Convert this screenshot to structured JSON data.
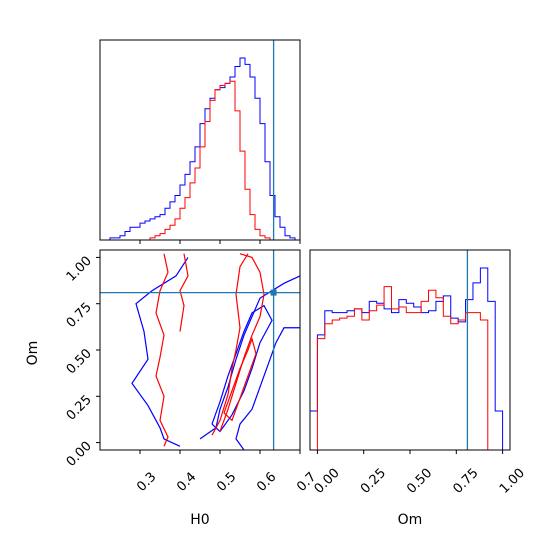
{
  "chart_data": [
    {
      "type": "histogram",
      "panel": "H0 marginal",
      "x_param": "H0",
      "xlim": [
        0.2,
        0.7
      ],
      "y_ticks_shown": false,
      "bins": [
        0.2,
        0.2125,
        0.225,
        0.2375,
        0.25,
        0.2625,
        0.275,
        0.2875,
        0.3,
        0.3125,
        0.325,
        0.3375,
        0.35,
        0.3625,
        0.375,
        0.3875,
        0.4,
        0.4125,
        0.425,
        0.4375,
        0.45,
        0.4625,
        0.475,
        0.4875,
        0.5,
        0.5125,
        0.525,
        0.5375,
        0.55,
        0.5625,
        0.575,
        0.5875,
        0.6,
        0.6125,
        0.625,
        0.6375,
        0.65,
        0.6625,
        0.675,
        0.6875,
        0.7
      ],
      "series": [
        {
          "color": "#0000ff",
          "counts": [
            0,
            0,
            1,
            1,
            2,
            4,
            6,
            6,
            8,
            9,
            10,
            11,
            12,
            15,
            18,
            21,
            26,
            31,
            37,
            44,
            55,
            62,
            67,
            71,
            72,
            74,
            77,
            82,
            86,
            83,
            77,
            67,
            55,
            37,
            21,
            11,
            6,
            2,
            1,
            0
          ]
        },
        {
          "color": "#ff0000",
          "counts": [
            0,
            0,
            0,
            0,
            0,
            0,
            0,
            0,
            0,
            0,
            1,
            2,
            3,
            5,
            7,
            10,
            15,
            20,
            27,
            34,
            44,
            56,
            66,
            71,
            73,
            74,
            75,
            61,
            42,
            24,
            12,
            5,
            2,
            1,
            0,
            0,
            0,
            0,
            0,
            0
          ]
        }
      ],
      "truth_line": {
        "x": 0.634,
        "color": "#1f77b4"
      }
    },
    {
      "type": "contour",
      "panel": "H0 vs Om",
      "x_param": "H0",
      "y_param": "Om",
      "xlim": [
        0.2,
        0.7
      ],
      "ylim": [
        -0.04,
        1.04
      ],
      "x_ticks": [
        "0.3",
        "0.4",
        "0.5",
        "0.6",
        "0.7"
      ],
      "y_ticks": [
        "0.00",
        "0.25",
        "0.50",
        "0.75",
        "1.00"
      ],
      "xlabel": "H0",
      "ylabel": "Om",
      "series": [
        {
          "color": "#0000ff",
          "contours": [
            [
              [
                0.42,
                1.0
              ],
              [
                0.39,
                0.9
              ],
              [
                0.33,
                0.82
              ],
              [
                0.29,
                0.75
              ],
              [
                0.31,
                0.6
              ],
              [
                0.32,
                0.45
              ],
              [
                0.28,
                0.32
              ],
              [
                0.32,
                0.2
              ],
              [
                0.35,
                0.08
              ],
              [
                0.36,
                0.02
              ],
              [
                0.4,
                -0.02
              ]
            ],
            [
              [
                0.45,
                0.02
              ],
              [
                0.49,
                0.08
              ],
              [
                0.5,
                0.18
              ],
              [
                0.52,
                0.3
              ],
              [
                0.54,
                0.45
              ],
              [
                0.56,
                0.58
              ],
              [
                0.58,
                0.68
              ],
              [
                0.6,
                0.78
              ],
              [
                0.66,
                0.86
              ],
              [
                0.7,
                0.9
              ]
            ],
            [
              [
                0.7,
                0.62
              ],
              [
                0.66,
                0.62
              ],
              [
                0.64,
                0.54
              ],
              [
                0.62,
                0.42
              ],
              [
                0.6,
                0.3
              ],
              [
                0.58,
                0.18
              ],
              [
                0.55,
                0.1
              ],
              [
                0.54,
                0.02
              ],
              [
                0.56,
                -0.04
              ]
            ],
            [
              [
                0.48,
                0.1
              ],
              [
                0.5,
                0.22
              ],
              [
                0.52,
                0.36
              ],
              [
                0.54,
                0.48
              ],
              [
                0.56,
                0.6
              ],
              [
                0.58,
                0.7
              ],
              [
                0.61,
                0.74
              ],
              [
                0.63,
                0.66
              ],
              [
                0.6,
                0.54
              ],
              [
                0.58,
                0.4
              ],
              [
                0.56,
                0.28
              ],
              [
                0.53,
                0.15
              ],
              [
                0.5,
                0.06
              ],
              [
                0.48,
                0.1
              ]
            ]
          ]
        },
        {
          "color": "#ff0000",
          "contours": [
            [
              [
                0.36,
                1.02
              ],
              [
                0.37,
                0.92
              ],
              [
                0.35,
                0.82
              ],
              [
                0.34,
                0.7
              ],
              [
                0.36,
                0.58
              ],
              [
                0.35,
                0.46
              ],
              [
                0.34,
                0.36
              ],
              [
                0.36,
                0.25
              ],
              [
                0.35,
                0.12
              ],
              [
                0.37,
                0.03
              ],
              [
                0.36,
                -0.02
              ]
            ],
            [
              [
                0.41,
                1.02
              ],
              [
                0.42,
                0.9
              ],
              [
                0.4,
                0.82
              ],
              [
                0.41,
                0.74
              ],
              [
                0.4,
                0.6
              ]
            ],
            [
              [
                0.48,
                0.04
              ],
              [
                0.5,
                0.12
              ],
              [
                0.52,
                0.26
              ],
              [
                0.53,
                0.4
              ],
              [
                0.54,
                0.5
              ],
              [
                0.55,
                0.62
              ],
              [
                0.54,
                0.8
              ],
              [
                0.55,
                0.95
              ],
              [
                0.57,
                1.02
              ]
            ],
            [
              [
                0.5,
                0.06
              ],
              [
                0.52,
                0.18
              ],
              [
                0.54,
                0.32
              ],
              [
                0.56,
                0.46
              ],
              [
                0.58,
                0.58
              ],
              [
                0.6,
                0.68
              ],
              [
                0.61,
                0.8
              ],
              [
                0.6,
                0.92
              ],
              [
                0.58,
                1.0
              ],
              [
                0.55,
                1.02
              ]
            ],
            [
              [
                0.51,
                0.16
              ],
              [
                0.53,
                0.28
              ],
              [
                0.55,
                0.4
              ],
              [
                0.57,
                0.5
              ],
              [
                0.58,
                0.56
              ],
              [
                0.59,
                0.48
              ],
              [
                0.57,
                0.36
              ],
              [
                0.55,
                0.24
              ],
              [
                0.53,
                0.12
              ],
              [
                0.51,
                0.16
              ]
            ]
          ]
        }
      ],
      "truth_lines": {
        "x": 0.634,
        "y": 0.81,
        "color": "#1f77b4"
      }
    },
    {
      "type": "histogram",
      "panel": "Om marginal",
      "x_param": "Om",
      "xlim": [
        -0.04,
        1.04
      ],
      "x_ticks": [
        "0.00",
        "0.25",
        "0.50",
        "0.75",
        "1.00"
      ],
      "xlabel": "Om",
      "y_ticks_shown": false,
      "bins": [
        -0.04,
        0.0,
        0.04,
        0.08,
        0.12,
        0.16,
        0.2,
        0.24,
        0.28,
        0.32,
        0.36,
        0.4,
        0.44,
        0.48,
        0.52,
        0.56,
        0.6,
        0.64,
        0.68,
        0.72,
        0.76,
        0.8,
        0.84,
        0.88,
        0.92,
        0.96,
        1.0,
        1.04
      ],
      "series": [
        {
          "color": "#0000ff",
          "counts": [
            21,
            62,
            75,
            74,
            74,
            75,
            76,
            74,
            80,
            79,
            76,
            74,
            81,
            79,
            77,
            74,
            75,
            80,
            83,
            71,
            69,
            81,
            90,
            98,
            80,
            21,
            0
          ]
        },
        {
          "color": "#ff0000",
          "counts": [
            0,
            60,
            68,
            70,
            71,
            72,
            76,
            70,
            75,
            78,
            88,
            76,
            77,
            74,
            74,
            80,
            86,
            82,
            72,
            68,
            70,
            74,
            74,
            70,
            0,
            0,
            0
          ]
        }
      ],
      "truth_line": {
        "x": 0.81,
        "color": "#1f77b4"
      }
    }
  ]
}
